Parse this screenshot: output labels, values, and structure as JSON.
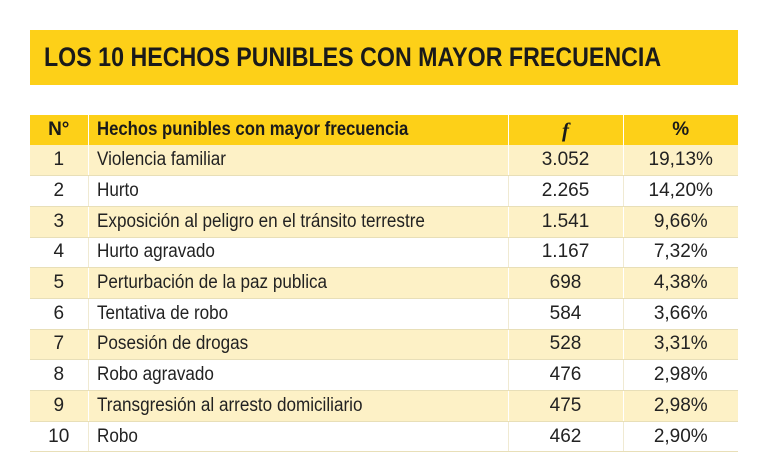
{
  "title": "LOS 10 HECHOS PUNIBLES CON MAYOR FRECUENCIA",
  "table": {
    "headers": {
      "num": "N°",
      "name": "Hechos punibles con mayor frecuencia",
      "f": "f",
      "pct": "%"
    },
    "rows": [
      {
        "num": "1",
        "name": "Violencia familiar",
        "f": "3.052",
        "pct": "19,13%"
      },
      {
        "num": "2",
        "name": "Hurto",
        "f": "2.265",
        "pct": "14,20%"
      },
      {
        "num": "3",
        "name": "Exposición al peligro en el tránsito terrestre",
        "f": "1.541",
        "pct": "9,66%"
      },
      {
        "num": "4",
        "name": "Hurto agravado",
        "f": "1.167",
        "pct": "7,32%"
      },
      {
        "num": "5",
        "name": "Perturbación de la paz publica",
        "f": "698",
        "pct": "4,38%"
      },
      {
        "num": "6",
        "name": "Tentativa de robo",
        "f": "584",
        "pct": "3,66%"
      },
      {
        "num": "7",
        "name": "Posesión de drogas",
        "f": "528",
        "pct": "3,31%"
      },
      {
        "num": "8",
        "name": "Robo agravado",
        "f": "476",
        "pct": "2,98%"
      },
      {
        "num": "9",
        "name": "Transgresión al arresto domiciliario",
        "f": "475",
        "pct": "2,98%"
      },
      {
        "num": "10",
        "name": "Robo",
        "f": "462",
        "pct": "2,90%"
      }
    ]
  },
  "colors": {
    "accent": "#fdd018",
    "row_alt": "#fdf1c6"
  }
}
